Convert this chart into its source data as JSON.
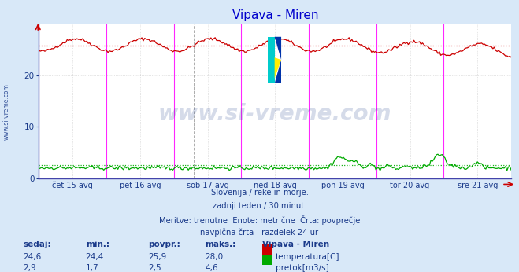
{
  "title": "Vipava - Miren",
  "title_color": "#0000cc",
  "bg_color": "#d8e8f8",
  "plot_bg_color": "#ffffff",
  "grid_color": "#cccccc",
  "axis_color": "#808080",
  "x_labels": [
    "čet 15 avg",
    "pet 16 avg",
    "sob 17 avg",
    "ned 18 avg",
    "pon 19 avg",
    "tor 20 avg",
    "sre 21 avg"
  ],
  "y_ticks": [
    0,
    10,
    20
  ],
  "y_max": 30,
  "y_min": 0,
  "temp_avg": 25.9,
  "flow_avg": 2.5,
  "temp_color": "#cc0000",
  "flow_color": "#00aa00",
  "magenta_line_color": "#ff00ff",
  "black_dashed_color": "#888888",
  "watermark_text": "www.si-vreme.com",
  "watermark_color": "#1a3a8a",
  "watermark_alpha": 0.18,
  "label_color": "#1a3a8a",
  "subtitle_lines": [
    "Slovenija / reke in morje.",
    "zadnji teden / 30 minut.",
    "Meritve: trenutne  Enote: metrične  Črta: povprečje",
    "navpična črta - razdelek 24 ur"
  ],
  "stats_headers": [
    "sedaj:",
    "min.:",
    "povpr.:",
    "maks.:",
    "Vipava - Miren"
  ],
  "stats_temp": [
    "24,6",
    "24,4",
    "25,9",
    "28,0"
  ],
  "stats_flow": [
    "2,9",
    "1,7",
    "2,5",
    "4,6"
  ],
  "legend_temp": "temperatura[C]",
  "legend_flow": "pretok[m3/s]",
  "logo_colors": [
    "#0066bb",
    "#00aaaa",
    "#ffdd00"
  ],
  "left_label": "www.si-vreme.com"
}
